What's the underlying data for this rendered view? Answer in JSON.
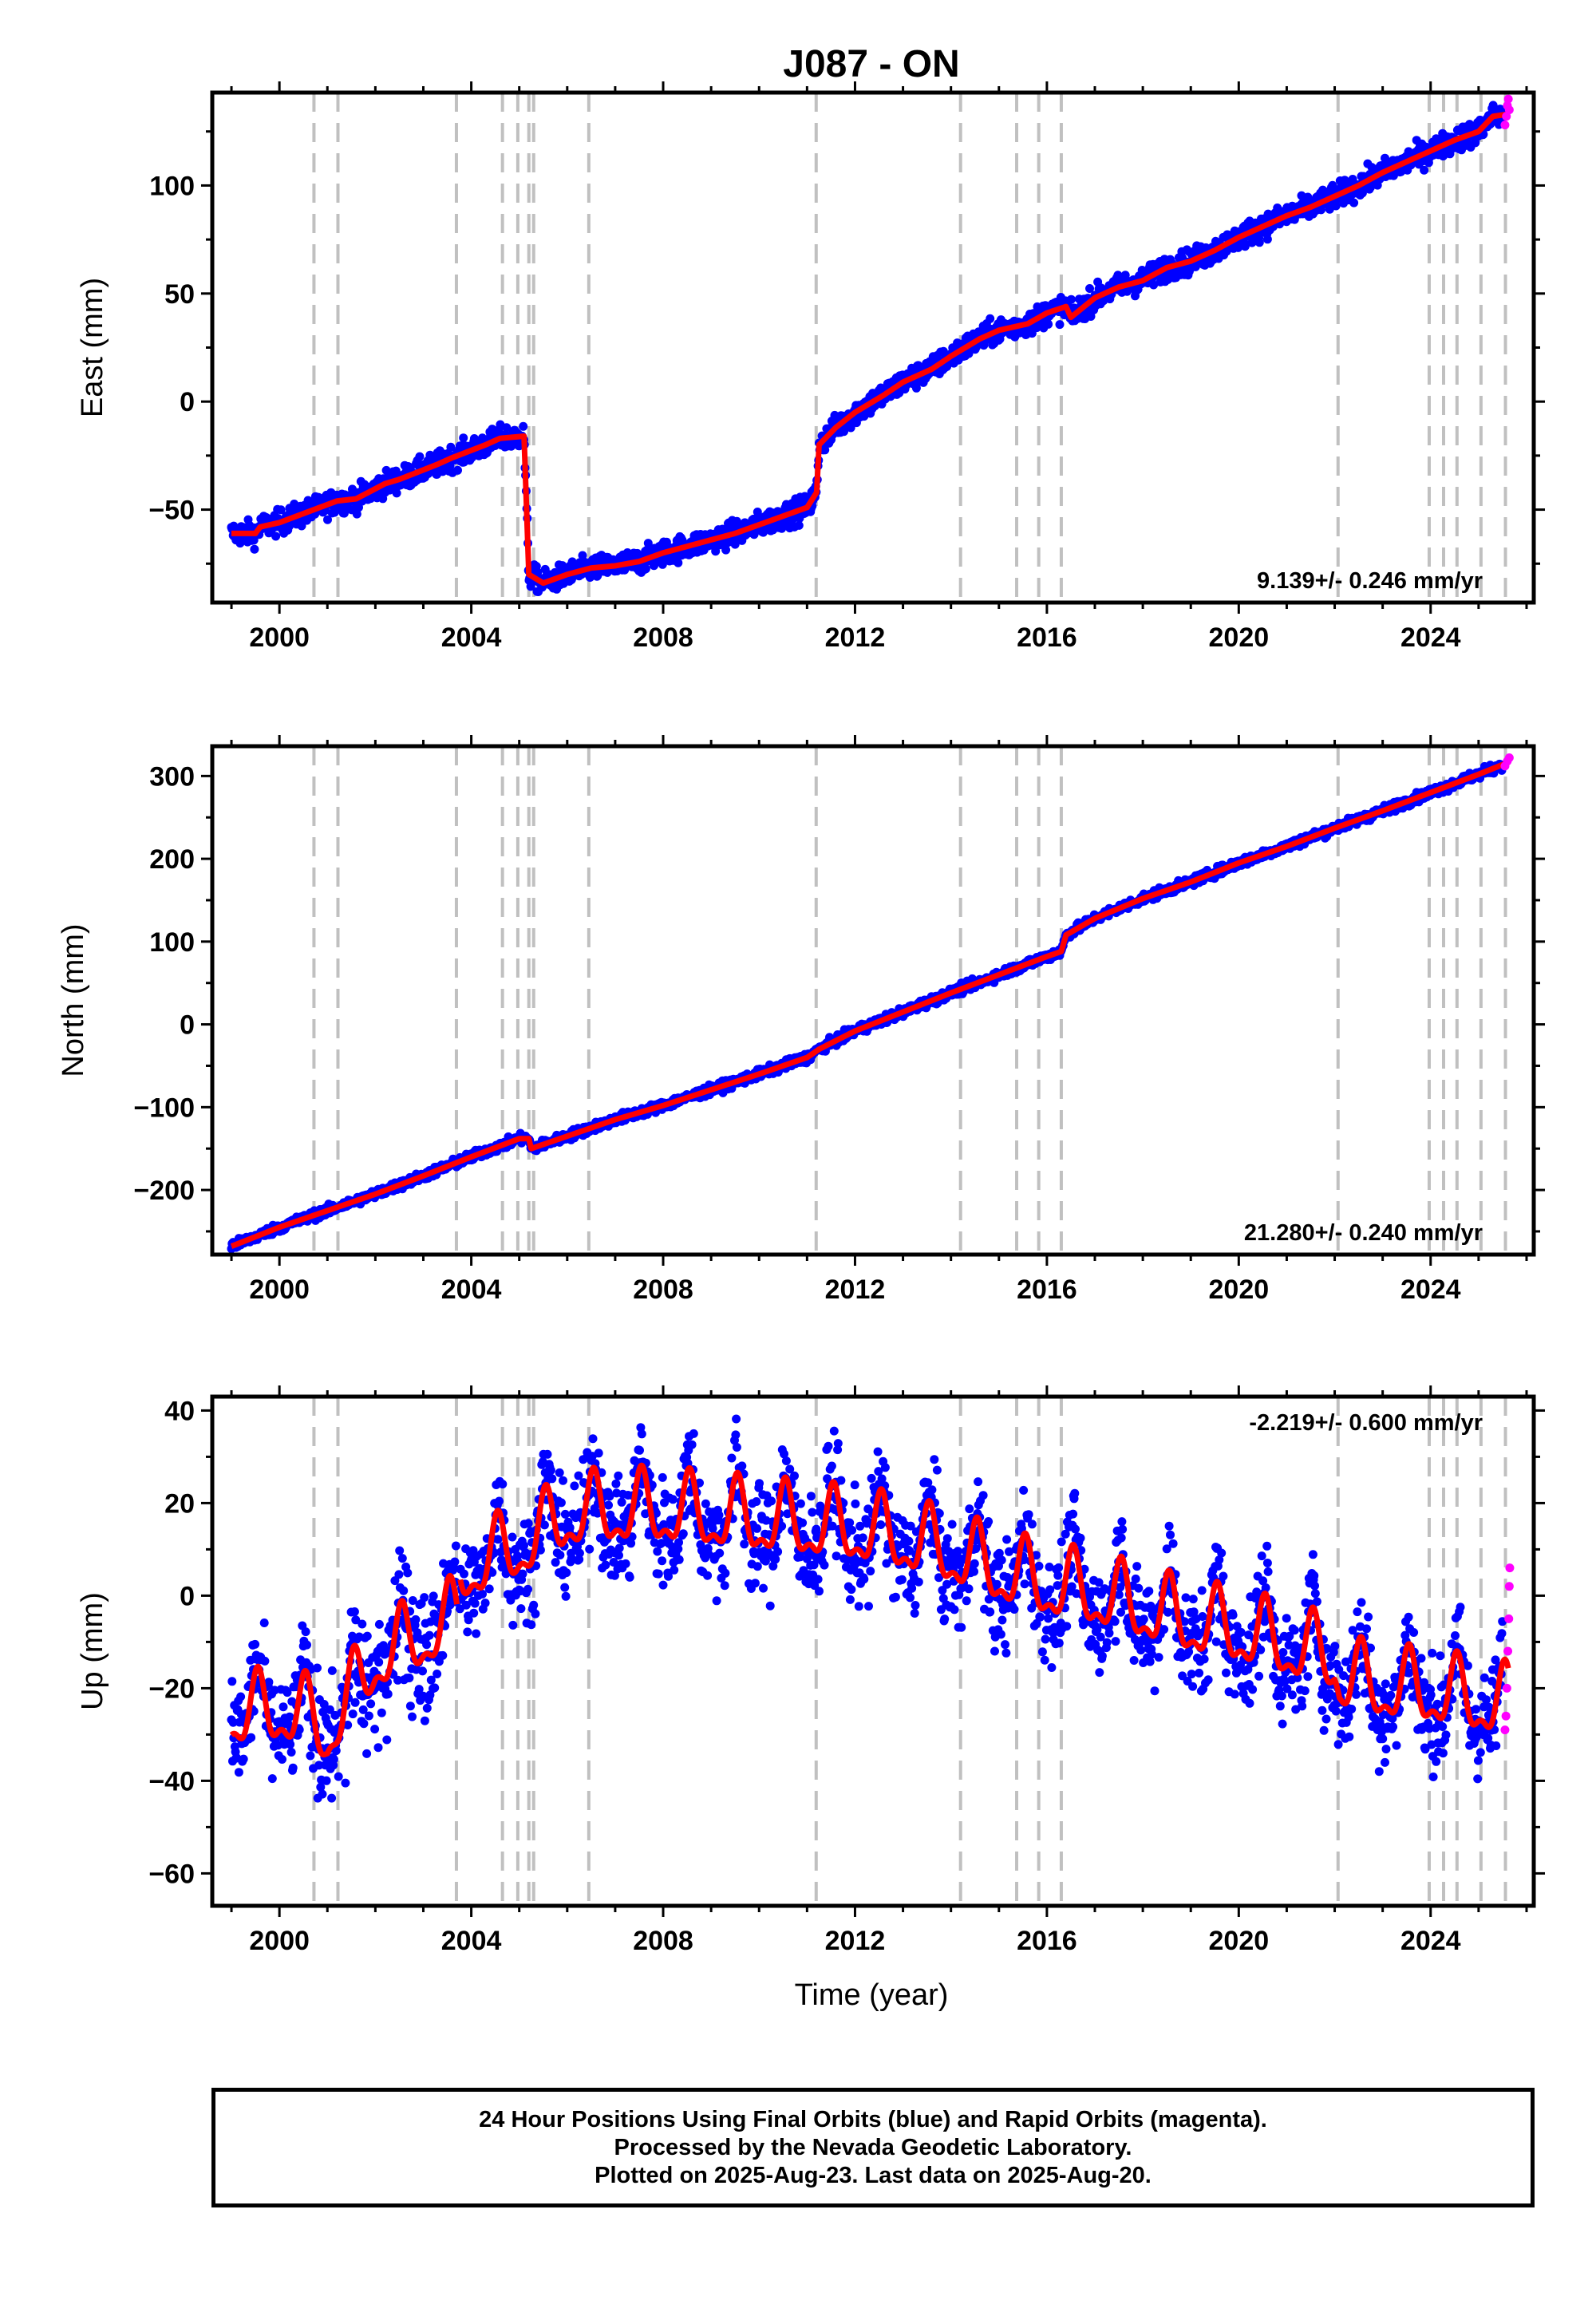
{
  "title": "J087 - ON",
  "colors": {
    "final": "#0000ff",
    "rapid": "#ff00ff",
    "model": "#ff0000",
    "breaks": "#c0c0c0"
  },
  "xlabel": "Time (year)",
  "footer": [
    "24 Hour Positions Using Final Orbits (blue) and Rapid Orbits (magenta).",
    "Processed by the Nevada Geodetic Laboratory.",
    "Plotted on 2025-Aug-23. Last data on 2025-Aug-20."
  ],
  "chart_data": [
    {
      "type": "scatter",
      "ylabel": "East (mm)",
      "rate": "9.139+/- 0.246 mm/yr",
      "xlim": [
        1998.6,
        2026.15
      ],
      "ylim": [
        -93,
        143
      ],
      "xticks": [
        2000,
        2004,
        2008,
        2012,
        2016,
        2020,
        2024
      ],
      "yticks": [
        -50,
        0,
        50,
        100
      ],
      "series": [
        {
          "role": "model",
          "x": [
            1999.0,
            1999.5,
            1999.6,
            2000.0,
            2000.6,
            2001.2,
            2001.6,
            2002.2,
            2002.5,
            2003.3,
            2003.6,
            2004.3,
            2004.6,
            2005.1,
            2005.2,
            2005.5,
            2006.0,
            2006.5,
            2007.0,
            2007.5,
            2008.0,
            2008.5,
            2009.0,
            2009.5,
            2010.0,
            2010.5,
            2011.0,
            2011.2,
            2011.25,
            2011.6,
            2012.0,
            2012.6,
            2013.0,
            2013.6,
            2014.0,
            2014.6,
            2015.0,
            2015.6,
            2016.0,
            2016.4,
            2016.5,
            2017.0,
            2017.5,
            2018.0,
            2018.5,
            2019.0,
            2019.5,
            2020.0,
            2020.5,
            2021.0,
            2021.5,
            2022.0,
            2022.5,
            2023.0,
            2023.5,
            2024.0,
            2024.5,
            2025.0,
            2025.3,
            2025.6
          ],
          "y": [
            -61,
            -61,
            -58,
            -56,
            -51,
            -46,
            -45,
            -38,
            -36,
            -29,
            -26,
            -20,
            -17,
            -16,
            -80,
            -84,
            -80,
            -77,
            -76,
            -74,
            -70,
            -67,
            -64,
            -61,
            -57,
            -53,
            -49,
            -42,
            -20,
            -12,
            -5,
            3,
            9,
            15,
            21,
            29,
            33,
            36,
            41,
            44,
            39,
            48,
            53,
            56,
            62,
            65,
            70,
            76,
            81,
            86,
            90,
            95,
            100,
            106,
            111,
            116,
            121,
            125,
            132,
            133
          ]
        },
        {
          "role": "final",
          "x_range": [
            1999.0,
            2025.5
          ],
          "noise": 4
        },
        {
          "role": "rapid",
          "x": [
            2025.55,
            2025.58,
            2025.6,
            2025.62,
            2025.64
          ],
          "y": [
            128,
            132,
            137,
            140,
            135
          ]
        }
      ]
    },
    {
      "type": "scatter",
      "ylabel": "North (mm)",
      "rate": "21.280+/- 0.240 mm/yr",
      "xlim": [
        1998.6,
        2026.15
      ],
      "ylim": [
        -278,
        336
      ],
      "xticks": [
        2000,
        2004,
        2008,
        2012,
        2016,
        2020,
        2024
      ],
      "yticks": [
        -200,
        -100,
        0,
        100,
        200,
        300
      ],
      "series": [
        {
          "role": "model",
          "x": [
            1999.0,
            2000.0,
            2001.0,
            2002.0,
            2003.0,
            2004.0,
            2005.0,
            2005.2,
            2005.25,
            2006.0,
            2007.0,
            2008.0,
            2009.0,
            2010.0,
            2011.0,
            2011.25,
            2012.0,
            2013.0,
            2014.0,
            2015.0,
            2016.0,
            2016.3,
            2016.4,
            2017.0,
            2018.0,
            2019.0,
            2020.0,
            2021.0,
            2022.0,
            2023.0,
            2024.0,
            2025.0,
            2025.6
          ],
          "y": [
            -268,
            -245,
            -225,
            -205,
            -183,
            -160,
            -138,
            -138,
            -150,
            -135,
            -115,
            -98,
            -79,
            -60,
            -40,
            -30,
            -8,
            15,
            38,
            60,
            82,
            88,
            108,
            128,
            152,
            172,
            195,
            215,
            237,
            258,
            280,
            302,
            316
          ]
        },
        {
          "role": "final",
          "x_range": [
            1999.0,
            2025.5
          ],
          "noise": 4
        },
        {
          "role": "rapid",
          "x": [
            2025.55,
            2025.6,
            2025.64
          ],
          "y": [
            312,
            318,
            322
          ]
        }
      ]
    },
    {
      "type": "scatter",
      "ylabel": "Up (mm)",
      "rate": "-2.219+/- 0.600 mm/yr",
      "xlim": [
        1998.6,
        2026.15
      ],
      "ylim": [
        -67,
        43
      ],
      "xticks": [
        2000,
        2004,
        2008,
        2012,
        2016,
        2020,
        2024
      ],
      "yticks": [
        -60,
        -40,
        -20,
        0,
        20,
        40
      ],
      "series": [
        {
          "role": "model",
          "form": "seasonal",
          "amplitude": 7,
          "peak_phase": 0.55,
          "baseline_x": [
            1999.0,
            2000.0,
            2000.5,
            2001.0,
            2001.3,
            2002.0,
            2003.0,
            2003.7,
            2003.75,
            2004.5,
            2005.3,
            2006.0,
            2007.0,
            2008.0,
            2009.0,
            2010.0,
            2011.0,
            2012.0,
            2013.0,
            2014.0,
            2015.0,
            2016.0,
            2017.0,
            2018.0,
            2019.0,
            2020.0,
            2021.0,
            2022.0,
            2022.1,
            2023.0,
            2024.0,
            2025.0,
            2025.6
          ],
          "baseline_y": [
            -26,
            -25,
            -26,
            -30,
            -25,
            -14,
            -9,
            -5,
            5,
            8,
            12,
            17,
            18,
            18,
            17,
            16,
            15,
            14,
            12,
            9,
            5,
            2,
            0,
            -3,
            -6,
            -8,
            -11,
            -14,
            -18,
            -20,
            -21,
            -23,
            -24
          ]
        },
        {
          "role": "final",
          "x_range": [
            1999.0,
            2025.5
          ],
          "noise": 8
        },
        {
          "role": "rapid",
          "x": [
            2025.55,
            2025.57,
            2025.59,
            2025.61,
            2025.63,
            2025.64,
            2025.65
          ],
          "y": [
            -29,
            -26,
            -20,
            -12,
            -5,
            2,
            6
          ]
        }
      ]
    }
  ],
  "breaks": [
    2000.72,
    2001.22,
    2003.69,
    2004.65,
    2004.97,
    2005.2,
    2005.3,
    2006.45,
    2011.19,
    2014.2,
    2015.37,
    2015.83,
    2016.3,
    2022.07,
    2023.97,
    2024.27,
    2024.55,
    2025.05,
    2025.56
  ]
}
